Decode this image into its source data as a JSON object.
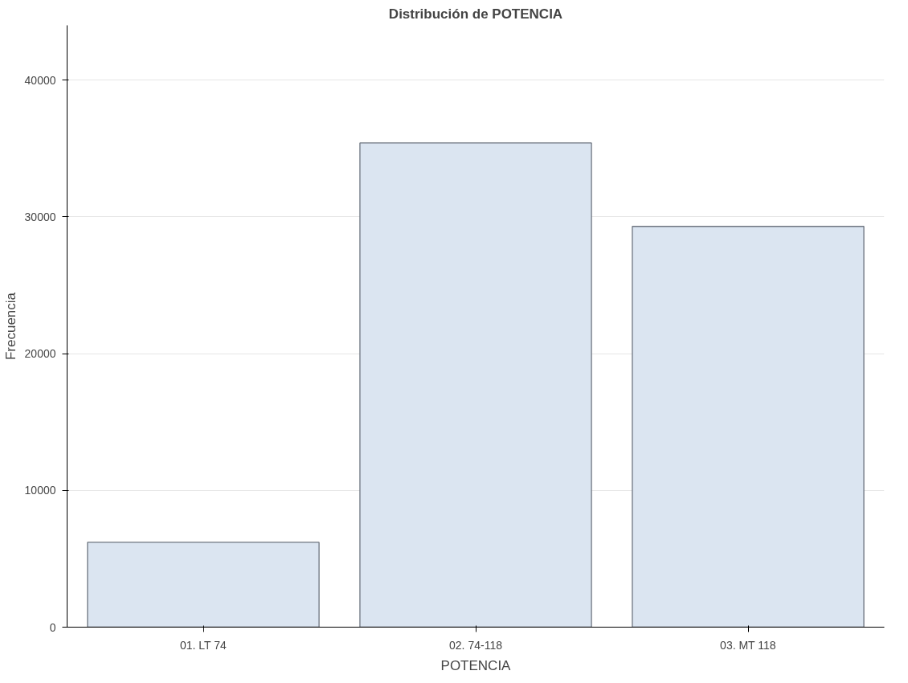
{
  "chart_data": {
    "type": "bar",
    "title": "Distribución de POTENCIA",
    "xlabel": "POTENCIA",
    "ylabel": "Frecuencia",
    "categories": [
      "01. LT 74",
      "02. 74-118",
      "03. MT 118"
    ],
    "values": [
      6200,
      35400,
      29300
    ],
    "color": "#dbe5f1",
    "ylim": [
      0,
      44000
    ],
    "yticks": [
      0,
      10000,
      20000,
      30000,
      40000
    ],
    "grid": "y"
  }
}
